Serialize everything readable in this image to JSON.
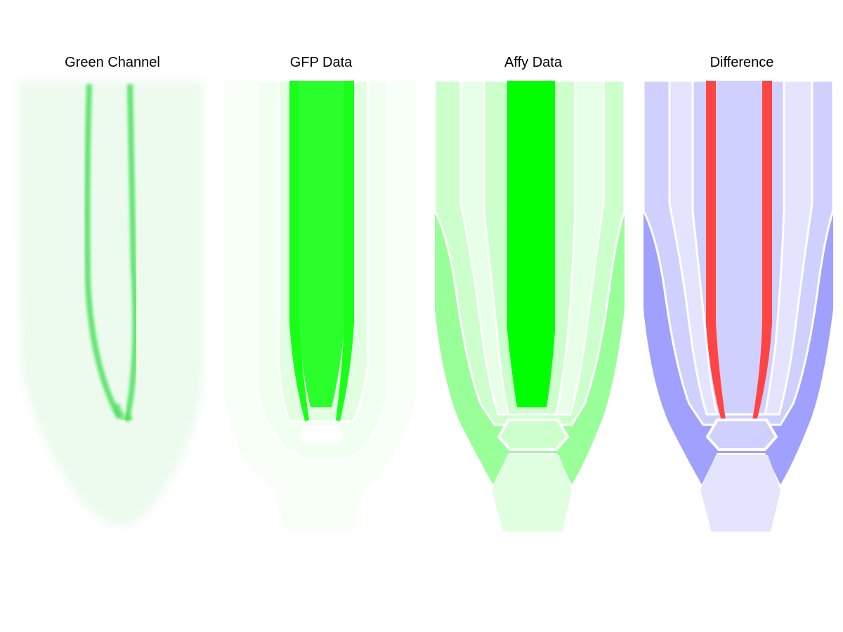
{
  "panels": [
    {
      "title": "Green Channel"
    },
    {
      "title": "GFP Data"
    },
    {
      "title": "Affy Data"
    },
    {
      "title": "Difference"
    }
  ],
  "colors": {
    "green_strong": "#00ff00",
    "green_bright": "#2bff2b",
    "green_medium": "#99ff99",
    "green_light": "#ccffcc",
    "green_faint": "#e6ffe6",
    "green_veryfaint": "#f5fff5",
    "blue_medium": "#a0a0ff",
    "blue_light": "#d0d0ff",
    "blue_faint": "#e4e4ff",
    "red": "#ff4444"
  }
}
